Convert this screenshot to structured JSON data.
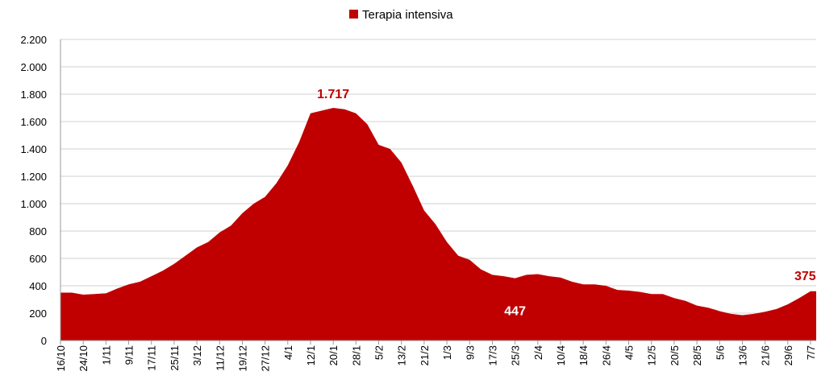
{
  "chart_data": {
    "type": "area",
    "categories": [
      "16/10",
      null,
      "24/10",
      null,
      "1/11",
      null,
      "9/11",
      null,
      "17/11",
      null,
      "25/11",
      null,
      "3/12",
      null,
      "11/12",
      null,
      "19/12",
      null,
      "27/12",
      null,
      "4/1",
      null,
      "12/1",
      null,
      "20/1",
      null,
      "28/1",
      null,
      "5/2",
      null,
      "13/2",
      null,
      "21/2",
      null,
      "1/3",
      null,
      "9/3",
      null,
      "17/3",
      null,
      "25/3",
      null,
      "2/4",
      null,
      "10/4",
      null,
      "18/4",
      null,
      "26/4",
      null,
      "4/5",
      null,
      "12/5",
      null,
      "20/5",
      null,
      "28/5",
      null,
      "5/6",
      null,
      "13/6",
      null,
      "21/6",
      null,
      "29/6",
      null,
      "7/7"
    ],
    "series": [
      {
        "name": "Terapia intensiva",
        "color": "#c00000",
        "values": [
          350,
          350,
          335,
          340,
          345,
          380,
          410,
          430,
          470,
          510,
          560,
          620,
          680,
          720,
          790,
          840,
          930,
          1000,
          1050,
          1150,
          1280,
          1450,
          1660,
          1680,
          1700,
          1690,
          1660,
          1580,
          1430,
          1400,
          1300,
          1130,
          950,
          850,
          720,
          620,
          590,
          520,
          480,
          470,
          455,
          480,
          485,
          470,
          460,
          430,
          410,
          410,
          400,
          370,
          365,
          355,
          340,
          340,
          310,
          290,
          255,
          240,
          215,
          195,
          185,
          195,
          210,
          230,
          265,
          310,
          360
        ]
      }
    ],
    "annotations": [
      {
        "text": "1.717",
        "color": "#c00000"
      },
      {
        "text": "447",
        "color": "#ffffff"
      },
      {
        "text": "375",
        "color": "#c00000"
      }
    ],
    "ylim": [
      0,
      2200
    ],
    "yticks": [
      0,
      200,
      400,
      600,
      800,
      {
        "value": 1000,
        "label": "1.000"
      },
      {
        "value": 1200,
        "label": "1.200"
      },
      {
        "value": 1400,
        "label": "1.400"
      },
      {
        "value": 1600,
        "label": "1.600"
      },
      {
        "value": 1800,
        "label": "1.800"
      },
      {
        "value": 2000,
        "label": "2.000"
      },
      {
        "value": 2200,
        "label": "2.200"
      }
    ],
    "grid": true,
    "legend": "top"
  }
}
